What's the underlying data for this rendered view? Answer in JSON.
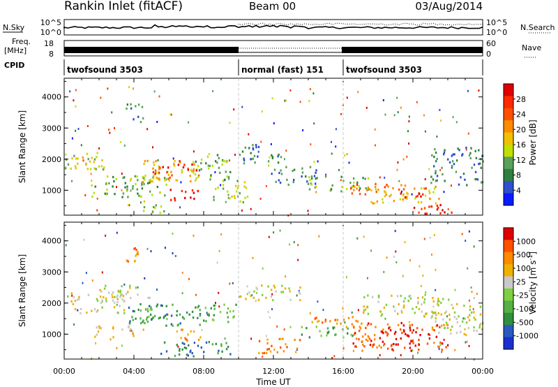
{
  "header": {
    "station": "Rankin Inlet (fitACF)",
    "beam": "Beam 00",
    "date": "03/Aug/2014"
  },
  "top_panels": {
    "nsky_label": "N.Sky",
    "nsky_ticks": [
      "10^5",
      "10^0"
    ],
    "nsearch_label": "N.Search",
    "nsearch_ticks": [
      "10^5",
      "10^0"
    ],
    "freq_label_1": "Freq.",
    "freq_label_2": "[MHz]",
    "freq_ticks": [
      "18",
      "8"
    ],
    "nave_label": "Nave",
    "nave_ticks": [
      "60",
      "0"
    ],
    "cpid_label": "CPID",
    "cpid_segments": [
      {
        "label": "twofsound 3503",
        "start_h": 0,
        "end_h": 10
      },
      {
        "label": "normal (fast) 151",
        "start_h": 10,
        "end_h": 16
      },
      {
        "label": "twofsound 3503",
        "start_h": 16,
        "end_h": 24
      }
    ]
  },
  "chart_data": [
    {
      "type": "heatmap",
      "name": "power",
      "ylabel": "Slant Range [km]",
      "ylim": [
        200,
        4600
      ],
      "yticks": [
        "4000",
        "3000",
        "2000",
        "1000"
      ],
      "xlim": [
        0,
        24
      ],
      "colorbar_label": "Power [dB]",
      "colorbar_ticks": [
        "28",
        "24",
        "20",
        "16",
        "12",
        "8",
        "4"
      ],
      "colorbar_colors": [
        "#0a1aff",
        "#2f4fd0",
        "#2f7f3f",
        "#5aa05a",
        "#bfe000",
        "#f0c000",
        "#ff8c00",
        "#ff5000",
        "#ff2a00",
        "#e00000"
      ],
      "bands": [
        {
          "x0": 0.0,
          "x1": 2.5,
          "y0": 1700,
          "y1": 2300,
          "level": 4
        },
        {
          "x0": 0.5,
          "x1": 1.8,
          "y0": 1800,
          "y1": 2100,
          "level": 6
        },
        {
          "x0": 1.5,
          "x1": 6.0,
          "y0": 800,
          "y1": 1500,
          "level": 3
        },
        {
          "x0": 3.5,
          "x1": 7.8,
          "y0": 1300,
          "y1": 2000,
          "level": 5
        },
        {
          "x0": 5.0,
          "x1": 6.5,
          "y0": 1400,
          "y1": 1800,
          "level": 8
        },
        {
          "x0": 6.5,
          "x1": 7.6,
          "y0": 1600,
          "y1": 2000,
          "level": 9
        },
        {
          "x0": 6.0,
          "x1": 7.8,
          "y0": 700,
          "y1": 1100,
          "level": 9
        },
        {
          "x0": 4.5,
          "x1": 6.0,
          "y0": 300,
          "y1": 700,
          "level": 4
        },
        {
          "x0": 3.5,
          "x1": 4.5,
          "y0": 3200,
          "y1": 3800,
          "level": 2
        },
        {
          "x0": 7.5,
          "x1": 9.5,
          "y0": 1300,
          "y1": 2200,
          "level": 3
        },
        {
          "x0": 8.5,
          "x1": 10.5,
          "y0": 600,
          "y1": 1300,
          "level": 4
        },
        {
          "x0": 10.0,
          "x1": 12.5,
          "y0": 1900,
          "y1": 2500,
          "level": 2
        },
        {
          "x0": 12.0,
          "x1": 14.5,
          "y0": 1200,
          "y1": 1800,
          "level": 2
        },
        {
          "x0": 14.0,
          "x1": 17.5,
          "y0": 1000,
          "y1": 1500,
          "level": 3
        },
        {
          "x0": 16.0,
          "x1": 18.5,
          "y0": 900,
          "y1": 1300,
          "level": 7
        },
        {
          "x0": 17.5,
          "x1": 21.5,
          "y0": 600,
          "y1": 1200,
          "level": 5
        },
        {
          "x0": 19.0,
          "x1": 21.0,
          "y0": 800,
          "y1": 1100,
          "level": 8
        },
        {
          "x0": 20.0,
          "x1": 22.5,
          "y0": 250,
          "y1": 600,
          "level": 8
        },
        {
          "x0": 21.0,
          "x1": 24.0,
          "y0": 1200,
          "y1": 2400,
          "level": 2
        }
      ]
    },
    {
      "type": "heatmap",
      "name": "velocity",
      "ylabel": "Slant Range [km]",
      "ylim": [
        200,
        4600
      ],
      "yticks": [
        "4000",
        "3000",
        "2000",
        "1000"
      ],
      "xlim": [
        0,
        24
      ],
      "colorbar_label": "Velocity [m s",
      "colorbar_label_sup": "-1",
      "colorbar_label_end": "]",
      "colorbar_ticks": [
        "1000",
        "500",
        "100",
        "25",
        "-25",
        "-100",
        "-500",
        "-1000"
      ],
      "colorbar_colors": [
        "#1a2fd0",
        "#2a5ac0",
        "#2f8f3f",
        "#55b045",
        "#7fd040",
        "#c8c8c8",
        "#f0b000",
        "#ff8a00",
        "#ff5000",
        "#e00000"
      ],
      "bands": [
        {
          "x0": 0.0,
          "x1": 3.5,
          "y0": 1700,
          "y1": 2400,
          "level": 5
        },
        {
          "x0": 2.0,
          "x1": 5.0,
          "y0": 2200,
          "y1": 2600,
          "level": 5
        },
        {
          "x0": 3.5,
          "x1": 8.0,
          "y0": 1300,
          "y1": 2000,
          "level": 2
        },
        {
          "x0": 4.5,
          "x1": 6.0,
          "y0": 1500,
          "y1": 1900,
          "level": 3
        },
        {
          "x0": 1.5,
          "x1": 4.0,
          "y0": 900,
          "y1": 1300,
          "level": 6
        },
        {
          "x0": 6.5,
          "x1": 8.0,
          "y0": 800,
          "y1": 1200,
          "level": 7
        },
        {
          "x0": 5.5,
          "x1": 9.5,
          "y0": 300,
          "y1": 800,
          "level": 2
        },
        {
          "x0": 3.5,
          "x1": 4.5,
          "y0": 3200,
          "y1": 3800,
          "level": 7
        },
        {
          "x0": 8.0,
          "x1": 10.0,
          "y0": 1400,
          "y1": 2000,
          "level": 3
        },
        {
          "x0": 10.0,
          "x1": 13.5,
          "y0": 2100,
          "y1": 2600,
          "level": 5
        },
        {
          "x0": 11.0,
          "x1": 13.5,
          "y0": 400,
          "y1": 900,
          "level": 7
        },
        {
          "x0": 13.5,
          "x1": 16.5,
          "y0": 900,
          "y1": 1300,
          "level": 3
        },
        {
          "x0": 14.0,
          "x1": 17.0,
          "y0": 1200,
          "y1": 1600,
          "level": 7
        },
        {
          "x0": 16.5,
          "x1": 22.0,
          "y0": 500,
          "y1": 1400,
          "level": 8
        },
        {
          "x0": 18.0,
          "x1": 21.0,
          "y0": 700,
          "y1": 1200,
          "level": 9
        },
        {
          "x0": 17.0,
          "x1": 22.0,
          "y0": 1600,
          "y1": 2300,
          "level": 5
        },
        {
          "x0": 21.0,
          "x1": 24.0,
          "y0": 1000,
          "y1": 2200,
          "level": 5
        }
      ]
    }
  ],
  "x_axis": {
    "ticks": [
      "00:00",
      "04:00",
      "08:00",
      "12:00",
      "16:00",
      "20:00",
      "00:00"
    ],
    "tick_hours": [
      0,
      4,
      8,
      12,
      16,
      20,
      24
    ],
    "label": "Time UT"
  },
  "mode_boundaries_h": [
    10,
    16
  ],
  "colors": {
    "frame": "#000000",
    "divider": "#c8c8c8"
  }
}
